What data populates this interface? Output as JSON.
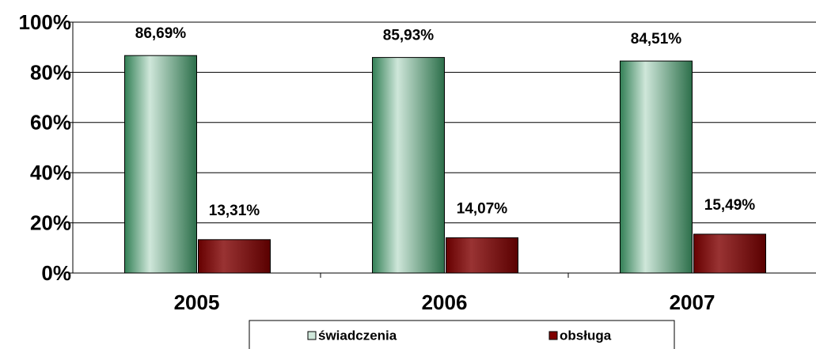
{
  "chart_data": {
    "type": "bar",
    "categories": [
      "2005",
      "2006",
      "2007"
    ],
    "series": [
      {
        "name": "świadczenia",
        "color": "#3f9f6a",
        "values": [
          86.69,
          85.93,
          84.51
        ],
        "value_labels": [
          "86,69%",
          "85,93%",
          "84,51%"
        ]
      },
      {
        "name": "obsługa",
        "color": "#800000",
        "values": [
          13.31,
          14.07,
          15.49
        ],
        "value_labels": [
          "13,31%",
          "14,07%",
          "15,49%"
        ]
      }
    ],
    "ylim": [
      0,
      100
    ],
    "yticks": [
      {
        "value": 0,
        "label": "0%"
      },
      {
        "value": 20,
        "label": "20%"
      },
      {
        "value": 40,
        "label": "40%"
      },
      {
        "value": 60,
        "label": "60%"
      },
      {
        "value": 80,
        "label": "80%"
      },
      {
        "value": 100,
        "label": "100%"
      }
    ],
    "grid": true,
    "legend": "bottom"
  }
}
